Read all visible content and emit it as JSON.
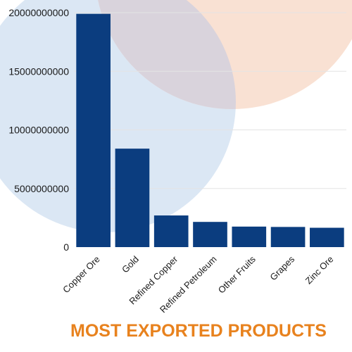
{
  "chart_data": {
    "type": "bar",
    "title": "MOST EXPORTED PRODUCTS",
    "categories": [
      "Copper Ore",
      "Gold",
      "Refined Copper",
      "Refined Petroleum",
      "Other Fruits",
      "Grapes",
      "Zinc Ore"
    ],
    "values": [
      19900000000,
      8400000000,
      2700000000,
      2150000000,
      1750000000,
      1720000000,
      1650000000
    ],
    "ylim": [
      0,
      20000000000
    ],
    "yticks": [
      "0",
      "5000000000",
      "10000000000",
      "15000000000",
      "20000000000"
    ],
    "grid": true,
    "colors": {
      "bar": "#0b3d7f",
      "title": "#e8821e",
      "grid": "#e4e4e4",
      "background_circle_blue": "#dbe7f4",
      "background_circle_peach": "#f9e1d3",
      "background_overlap": "#d9d3dc"
    }
  }
}
